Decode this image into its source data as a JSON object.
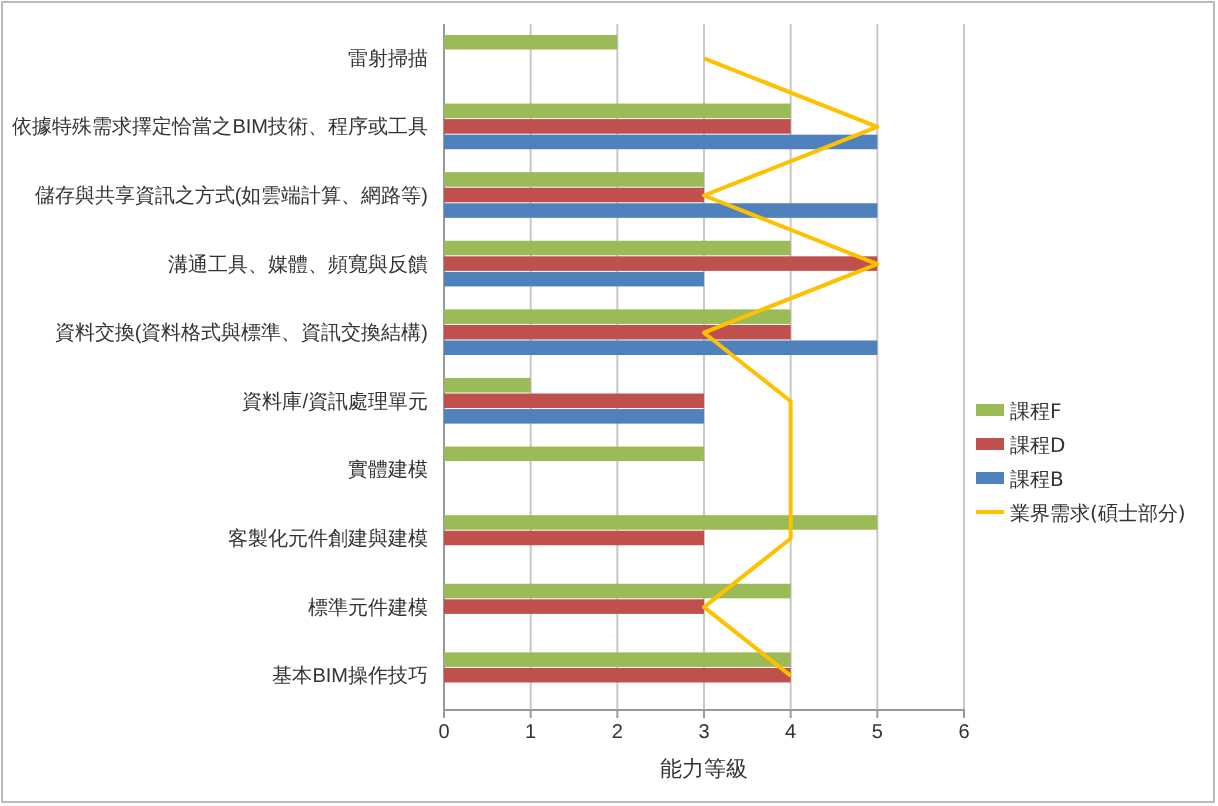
{
  "chart_data": {
    "type": "bar",
    "orientation": "horizontal",
    "categories": [
      "雷射掃描",
      "依據特殊需求擇定恰當之BIM技術、程序或工具",
      "儲存與共享資訊之方式(如雲端計算、網路等)",
      "溝通工具、媒體、頻寬與反饋",
      "資料交換(資料格式與標準、資訊交換結構)",
      "資料庫/資訊處理單元",
      "實體建模",
      "客製化元件創建與建模",
      "標準元件建模",
      "基本BIM操作技巧"
    ],
    "series": [
      {
        "name": "課程F",
        "color": "#9bbb59",
        "values": [
          2,
          4,
          3,
          4,
          4,
          1,
          3,
          5,
          4,
          4
        ]
      },
      {
        "name": "課程D",
        "color": "#c0504d",
        "values": [
          null,
          4,
          3,
          5,
          4,
          3,
          null,
          3,
          3,
          4
        ]
      },
      {
        "name": "課程B",
        "color": "#4f81bd",
        "values": [
          null,
          5,
          5,
          3,
          5,
          3,
          null,
          null,
          null,
          null
        ]
      },
      {
        "name": "業界需求(碩士部分)",
        "type": "line",
        "color": "#ffc000",
        "values": [
          3,
          5,
          3,
          5,
          3,
          4,
          4,
          4,
          3,
          4
        ]
      }
    ],
    "xlabel": "能力等級",
    "xlim": [
      0,
      6
    ],
    "xticks": [
      0,
      1,
      2,
      3,
      4,
      5,
      6
    ],
    "grid": "x",
    "legend": "right",
    "marker": "none"
  }
}
